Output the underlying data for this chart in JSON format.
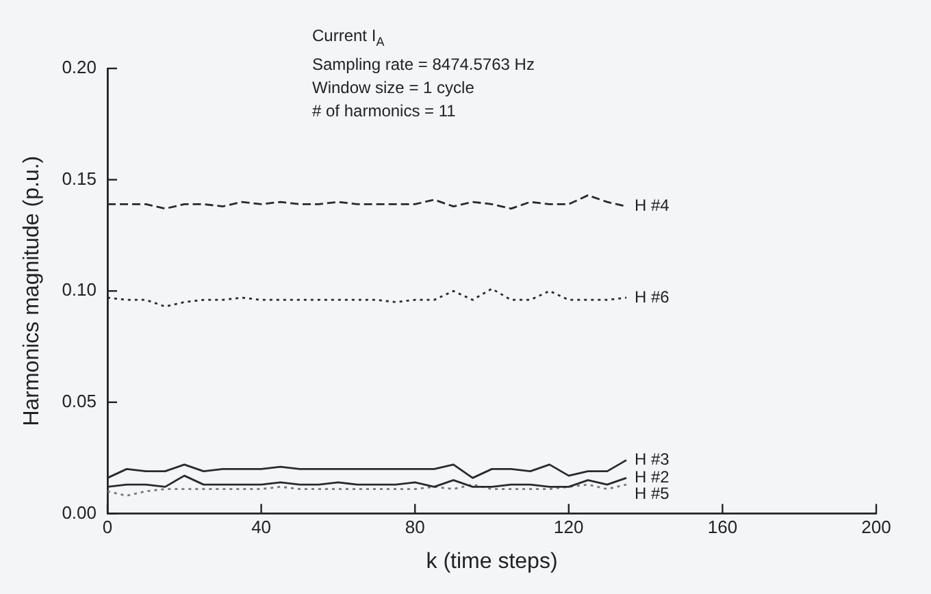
{
  "chart_data": {
    "type": "line",
    "xlabel": "k (time steps)",
    "ylabel": "Harmonics magnitude (p.u.)",
    "annotations": [
      "Current I$_{A}$",
      "Sampling rate = 8474.5763 Hz",
      "Window size = 1 cycle",
      "# of harmonics = 11"
    ],
    "x": [
      0,
      5,
      10,
      15,
      20,
      25,
      30,
      35,
      40,
      45,
      50,
      55,
      60,
      65,
      70,
      75,
      80,
      85,
      90,
      95,
      100,
      105,
      110,
      115,
      120,
      125,
      130,
      135
    ],
    "series": [
      {
        "name": "H #4",
        "color": "#2a2a2a",
        "line_style": "dashed",
        "values": [
          0.139,
          0.139,
          0.139,
          0.137,
          0.139,
          0.139,
          0.138,
          0.14,
          0.139,
          0.14,
          0.139,
          0.139,
          0.14,
          0.139,
          0.139,
          0.139,
          0.139,
          0.141,
          0.138,
          0.14,
          0.139,
          0.137,
          0.14,
          0.139,
          0.139,
          0.143,
          0.14,
          0.138
        ]
      },
      {
        "name": "H #6",
        "color": "#2a2a2a",
        "line_style": "dotted",
        "values": [
          0.097,
          0.096,
          0.096,
          0.093,
          0.095,
          0.096,
          0.096,
          0.097,
          0.096,
          0.096,
          0.096,
          0.096,
          0.096,
          0.096,
          0.096,
          0.095,
          0.096,
          0.096,
          0.1,
          0.096,
          0.101,
          0.096,
          0.096,
          0.1,
          0.096,
          0.096,
          0.096,
          0.097
        ]
      },
      {
        "name": "H #3",
        "color": "#2a2a2a",
        "line_style": "solid",
        "values": [
          0.016,
          0.02,
          0.019,
          0.019,
          0.022,
          0.019,
          0.02,
          0.02,
          0.02,
          0.021,
          0.02,
          0.02,
          0.02,
          0.02,
          0.02,
          0.02,
          0.02,
          0.02,
          0.022,
          0.016,
          0.02,
          0.02,
          0.019,
          0.022,
          0.017,
          0.019,
          0.019,
          0.024
        ]
      },
      {
        "name": "H #2",
        "color": "#2a2a2a",
        "line_style": "solid",
        "values": [
          0.012,
          0.013,
          0.013,
          0.012,
          0.017,
          0.013,
          0.013,
          0.013,
          0.013,
          0.014,
          0.013,
          0.013,
          0.014,
          0.013,
          0.013,
          0.013,
          0.014,
          0.012,
          0.015,
          0.012,
          0.012,
          0.013,
          0.013,
          0.012,
          0.012,
          0.015,
          0.013,
          0.016
        ]
      },
      {
        "name": "H #5",
        "color": "#777777",
        "line_style": "dotted",
        "values": [
          0.01,
          0.008,
          0.01,
          0.011,
          0.011,
          0.011,
          0.011,
          0.011,
          0.011,
          0.012,
          0.011,
          0.011,
          0.011,
          0.011,
          0.011,
          0.011,
          0.011,
          0.012,
          0.011,
          0.013,
          0.011,
          0.011,
          0.011,
          0.011,
          0.012,
          0.013,
          0.011,
          0.013
        ]
      }
    ],
    "xlim": [
      0,
      200
    ],
    "xticks": [
      0,
      40,
      80,
      120,
      160,
      200
    ],
    "ylim": [
      0,
      0.2
    ],
    "yticks": [
      {
        "value": 0,
        "label": "0.00"
      },
      0.05,
      {
        "value": 0.1,
        "label": "0.10"
      },
      0.15,
      {
        "value": 0.2,
        "label": "0.20"
      }
    ],
    "grid": false,
    "legend": false,
    "marker": "none"
  }
}
